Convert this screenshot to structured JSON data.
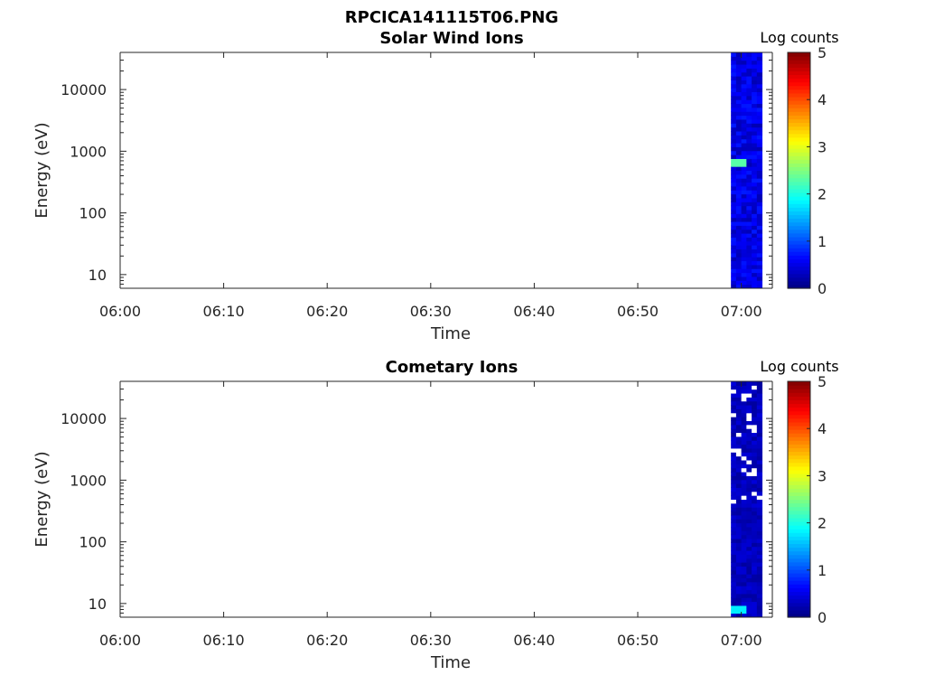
{
  "figure": {
    "title": "RPCICA141115T06.PNG"
  },
  "chart_data": [
    {
      "type": "heatmap",
      "title": "Solar Wind Ions",
      "xlabel": "Time",
      "ylabel": "Energy (eV)",
      "x_ticks": [
        "06:00",
        "06:10",
        "06:20",
        "06:30",
        "06:40",
        "06:50",
        "07:00"
      ],
      "x_range": [
        "06:00",
        "07:03"
      ],
      "y_scale": "log",
      "y_ticks": [
        10,
        100,
        1000,
        10000
      ],
      "y_range": [
        6,
        40000
      ],
      "colorbar": {
        "label": "Log counts",
        "range": [
          0,
          5
        ],
        "ticks": [
          0,
          1,
          2,
          3,
          4,
          5
        ],
        "colormap": "jet"
      },
      "data_region": {
        "x_start": "06:59",
        "x_end": "07:02",
        "typical_log_counts": 0.5,
        "peak": {
          "energy_ev": 700,
          "log_counts": 2.3
        }
      },
      "grid": false
    },
    {
      "type": "heatmap",
      "title": "Cometary Ions",
      "xlabel": "Time",
      "ylabel": "Energy (eV)",
      "x_ticks": [
        "06:00",
        "06:10",
        "06:20",
        "06:30",
        "06:40",
        "06:50",
        "07:00"
      ],
      "x_range": [
        "06:00",
        "07:03"
      ],
      "y_scale": "log",
      "y_ticks": [
        10,
        100,
        1000,
        10000
      ],
      "y_range": [
        6,
        40000
      ],
      "colorbar": {
        "label": "Log counts",
        "range": [
          0,
          5
        ],
        "ticks": [
          0,
          1,
          2,
          3,
          4,
          5
        ],
        "colormap": "jet"
      },
      "data_region": {
        "x_start": "06:59",
        "x_end": "07:02",
        "typical_log_counts": 0.3,
        "peak": {
          "energy_ev": 8,
          "log_counts": 1.8
        }
      },
      "grid": false
    }
  ]
}
